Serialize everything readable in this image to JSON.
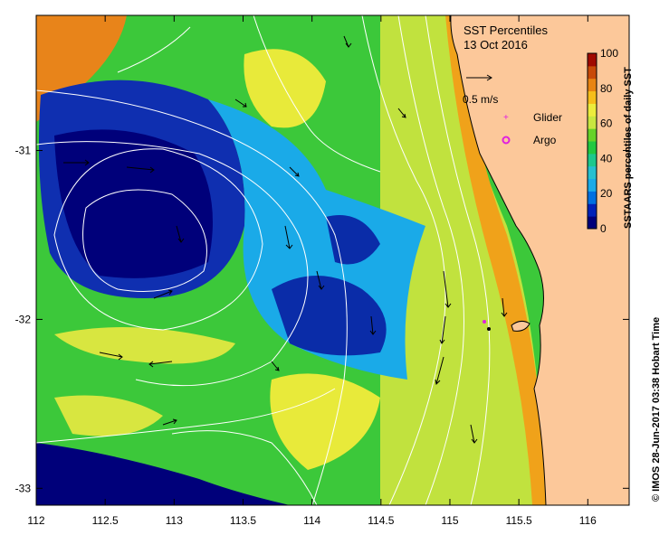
{
  "title": "SST Percentiles",
  "date": "13 Oct 2016",
  "vector_scale_label": "0.5 m/s",
  "legend": [
    {
      "label": "Glider",
      "color": "#e020e0",
      "symbol": "cross"
    },
    {
      "label": "Argo",
      "color": "#e020e0",
      "symbol": "ring"
    }
  ],
  "colorbar": {
    "label": "SSTAARS percentiles of daily SST",
    "ticks": [
      "0",
      "20",
      "40",
      "60",
      "80",
      "100"
    ],
    "colors": [
      "#00007a",
      "#0022b8",
      "#0070e0",
      "#1aaae8",
      "#27c0d0",
      "#1ec88c",
      "#22c840",
      "#66d228",
      "#c8e640",
      "#ecec3c",
      "#f6be1a",
      "#e88412",
      "#c84a08",
      "#a00a00"
    ]
  },
  "credit": "© IMOS 28-Jun-2017 03:38 Hobart Time",
  "map": {
    "x_ticks": [
      "112",
      "112.5",
      "113",
      "113.5",
      "114",
      "114.5",
      "115",
      "115.5",
      "116"
    ],
    "y_ticks": [
      "-31",
      "-32",
      "-33"
    ],
    "lon_range": [
      112,
      116.3
    ],
    "lat_range": [
      -33.1,
      -30.2
    ],
    "land_color": "#fcc89a"
  }
}
